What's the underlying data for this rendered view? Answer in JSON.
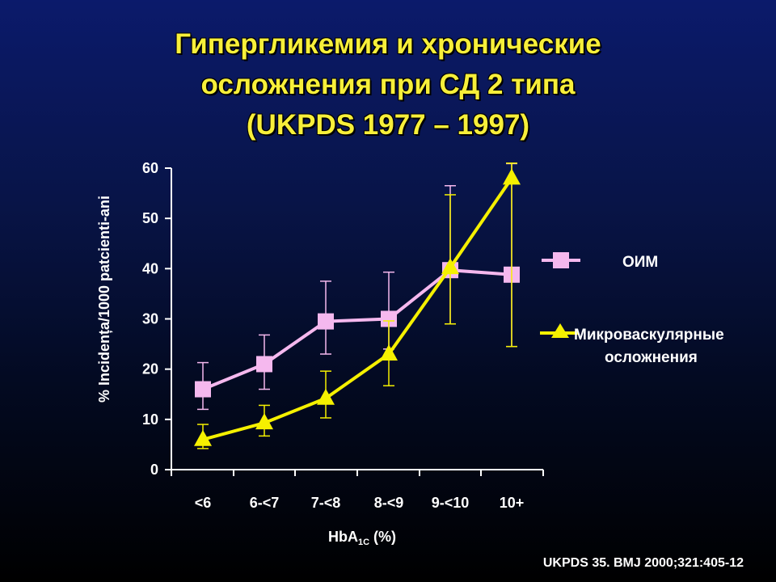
{
  "title": {
    "line1": "Гипергликемия и хронические",
    "line2": "осложнения при СД 2 типа",
    "line3": "(UKPDS 1977 – 1997)"
  },
  "source": "UKPDS 35.  BMJ 2000;321:405-12",
  "colors": {
    "oim": "#f5b8ee",
    "micro": "#f5f000",
    "axis": "#ffffff"
  },
  "chart_data": {
    "type": "line",
    "categories": [
      "<6",
      "6-<7",
      "7-<8",
      "8-<9",
      "9-<10",
      "10+"
    ],
    "xlabel_main": "HbA",
    "xlabel_sub": "1C",
    "xlabel_tail": " (%)",
    "ylabel": "% Incidența/1000 patcienti-ani",
    "ylim": [
      0,
      60
    ],
    "yticks": [
      0,
      10,
      20,
      30,
      40,
      50,
      60
    ],
    "legend_position": "right",
    "series": [
      {
        "name": "ОИМ",
        "marker": "square",
        "color": "#f5b8ee",
        "values": [
          16,
          21,
          29.5,
          30,
          39.7,
          38.8
        ],
        "err_low": [
          12,
          16,
          23,
          24,
          29,
          24.5
        ],
        "err_high": [
          21.3,
          26.8,
          37.5,
          39.3,
          56.5,
          60.9
        ]
      },
      {
        "name_line1": "Микроваскулярные",
        "name_line2": "осложнения",
        "marker": "triangle",
        "color": "#f5f000",
        "values": [
          6,
          9.3,
          14.2,
          23,
          40.2,
          58
        ],
        "err_low": [
          4.2,
          6.7,
          10.3,
          16.7,
          29,
          24.5
        ],
        "err_high": [
          9,
          12.8,
          19.6,
          29.6,
          54.7,
          61
        ]
      }
    ]
  }
}
